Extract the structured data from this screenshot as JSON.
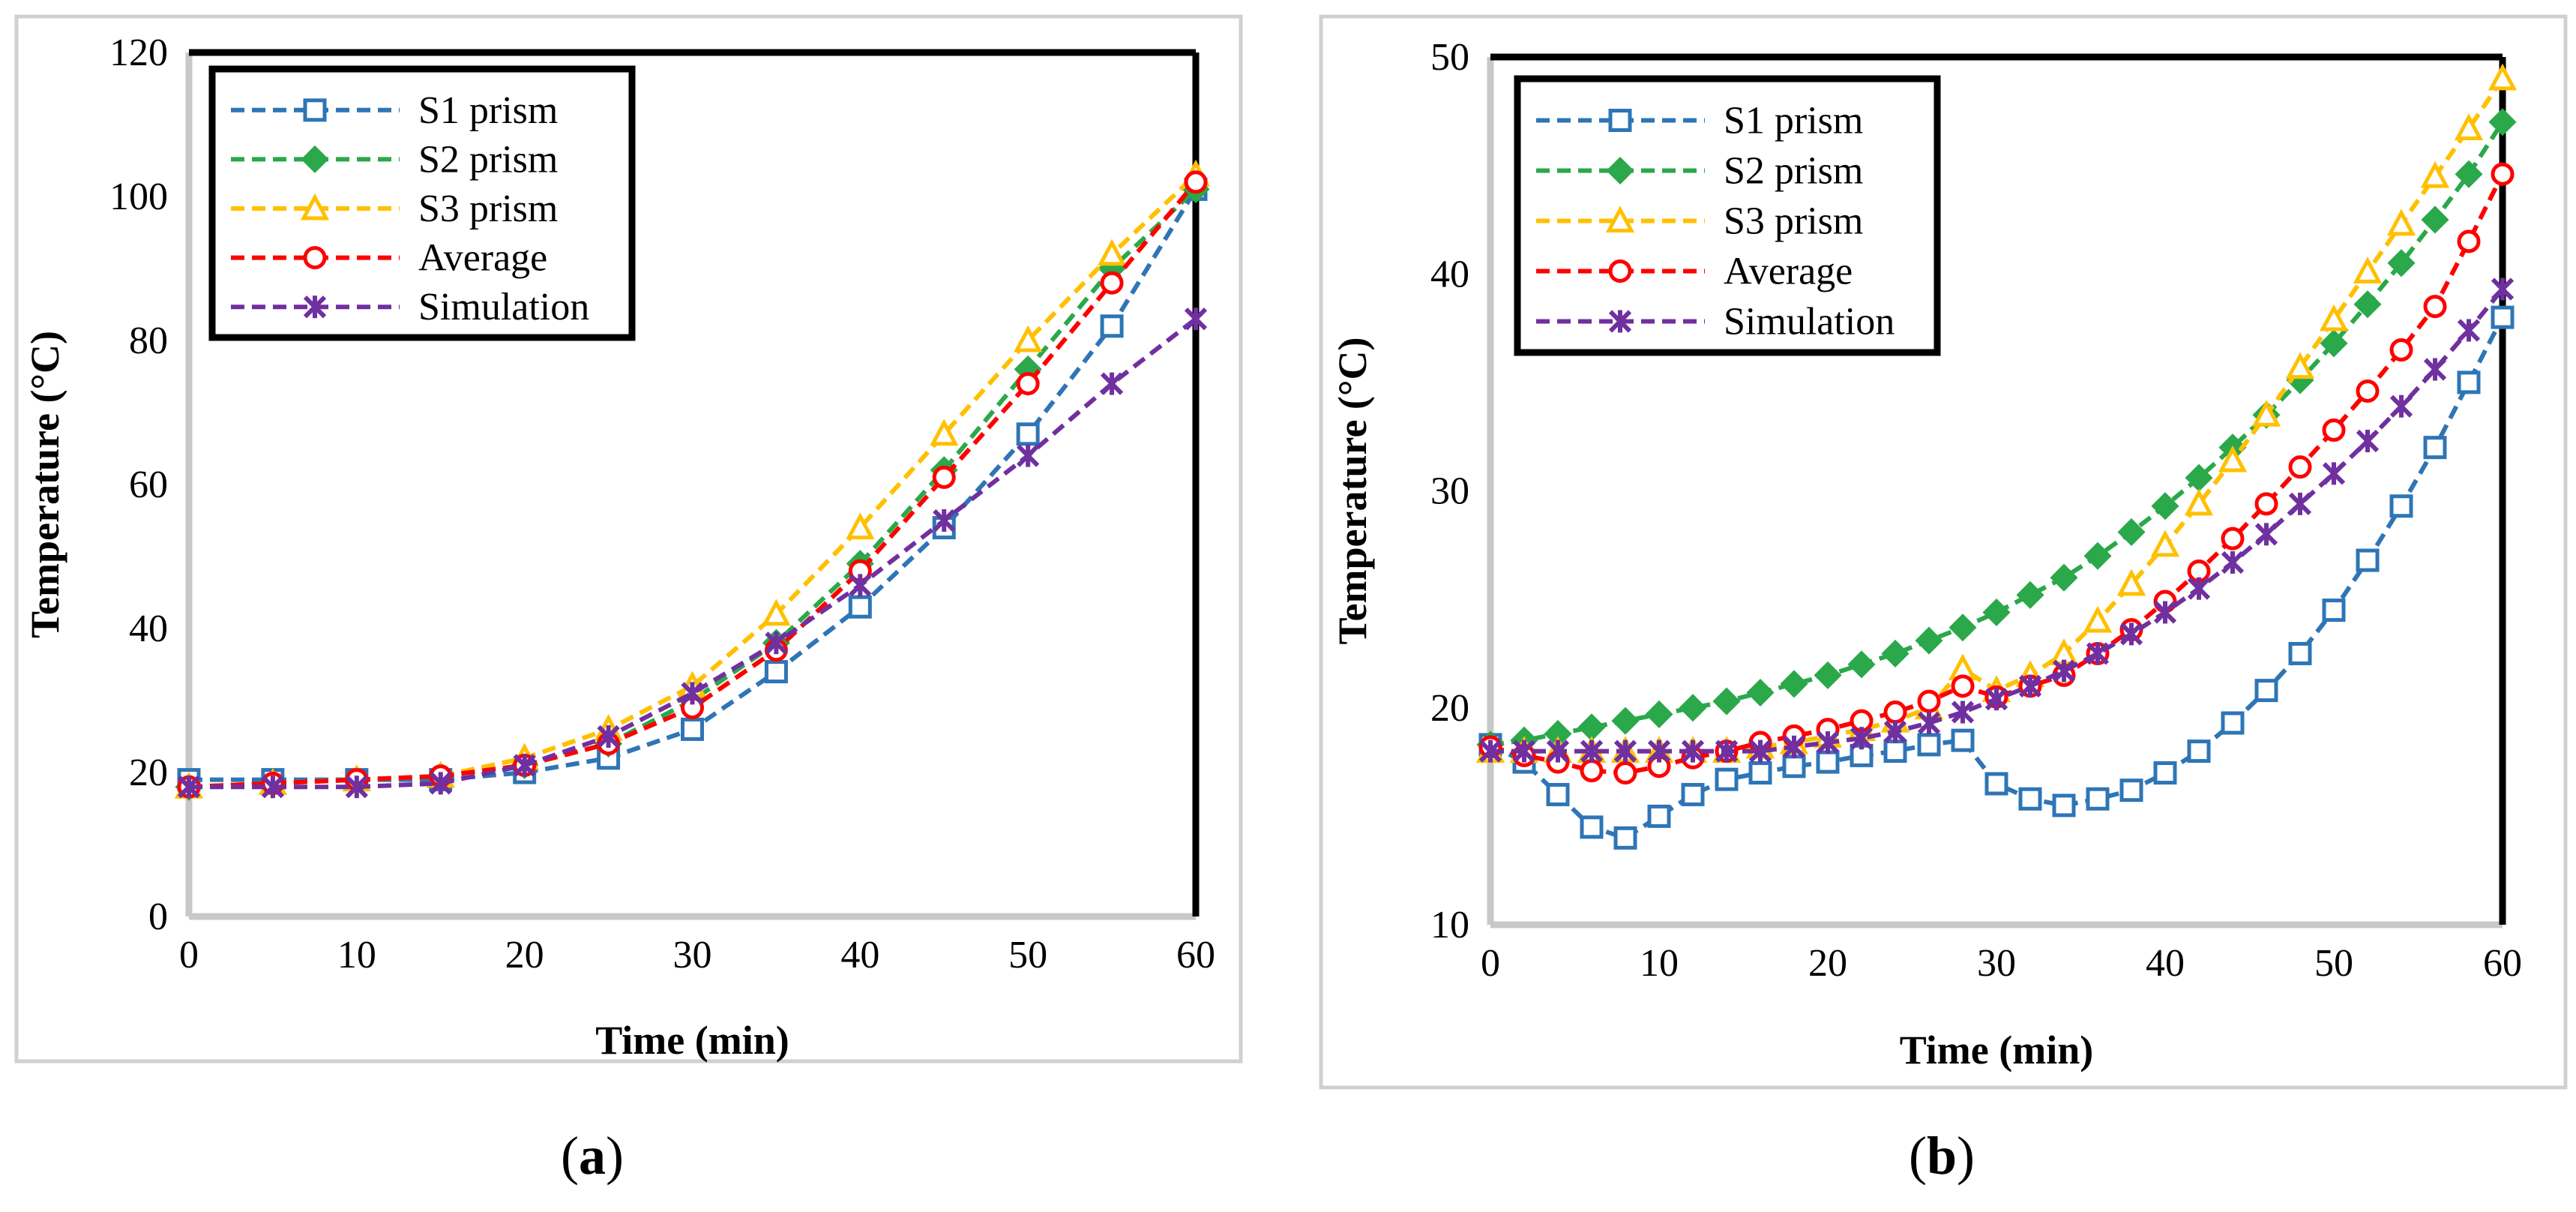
{
  "chart_data": [
    {
      "type": "line",
      "panel_label": "a",
      "xlabel": "Time (min)",
      "ylabel": "Temperature (°C)",
      "xlim": [
        0,
        60
      ],
      "ylim": [
        0,
        120
      ],
      "xticks": [
        0,
        10,
        20,
        30,
        40,
        50,
        60
      ],
      "yticks": [
        0,
        20,
        40,
        60,
        80,
        100,
        120
      ],
      "legend_position": "top-left",
      "grid": false,
      "x": [
        0,
        5,
        10,
        15,
        20,
        25,
        30,
        35,
        40,
        45,
        50,
        55,
        60
      ],
      "series": [
        {
          "name": "S1 prism",
          "color": "#2e75b6",
          "marker": "square",
          "values": [
            19,
            19,
            19,
            19,
            20,
            22,
            26,
            34,
            43,
            54,
            67,
            82,
            101
          ]
        },
        {
          "name": "S2 prism",
          "color": "#2aa84a",
          "marker": "diamond",
          "values": [
            18,
            18.5,
            19,
            19.5,
            21,
            24,
            30,
            38,
            49,
            62,
            76,
            90,
            101
          ]
        },
        {
          "name": "S3 prism",
          "color": "#ffc000",
          "marker": "triangle",
          "values": [
            18,
            18.5,
            19,
            19.5,
            22,
            26,
            32,
            42,
            54,
            67,
            80,
            92,
            103
          ]
        },
        {
          "name": "Average",
          "color": "#ff0000",
          "marker": "circle",
          "values": [
            18,
            18.5,
            19,
            19.5,
            21,
            24,
            29,
            37,
            48,
            61,
            74,
            88,
            102
          ]
        },
        {
          "name": "Simulation",
          "color": "#7030a0",
          "marker": "x",
          "values": [
            18,
            18,
            18,
            18.5,
            21,
            25,
            31,
            38,
            46,
            55,
            64,
            74,
            83
          ]
        }
      ]
    },
    {
      "type": "line",
      "panel_label": "b",
      "xlabel": "Time (min)",
      "ylabel": "Temperature (°C)",
      "xlim": [
        0,
        60
      ],
      "ylim": [
        10,
        50
      ],
      "xticks": [
        0,
        10,
        20,
        30,
        40,
        50,
        60
      ],
      "yticks": [
        10,
        20,
        30,
        40,
        50
      ],
      "legend_position": "top-left",
      "grid": false,
      "x": [
        0,
        2,
        4,
        6,
        8,
        10,
        12,
        14,
        16,
        18,
        20,
        22,
        24,
        26,
        28,
        30,
        32,
        34,
        36,
        38,
        40,
        42,
        44,
        46,
        48,
        50,
        52,
        54,
        56,
        58,
        60
      ],
      "series": [
        {
          "name": "S1 prism",
          "color": "#2e75b6",
          "marker": "square",
          "values": [
            18.3,
            17.5,
            16,
            14.5,
            14,
            15,
            16,
            16.7,
            17,
            17.3,
            17.5,
            17.8,
            18,
            18.3,
            18.5,
            16.5,
            15.8,
            15.5,
            15.8,
            16.2,
            17,
            18,
            19.3,
            20.8,
            22.5,
            24.5,
            26.8,
            29.3,
            32,
            35,
            38
          ]
        },
        {
          "name": "S2 prism",
          "color": "#2aa84a",
          "marker": "diamond",
          "values": [
            18.3,
            18.5,
            18.8,
            19.1,
            19.4,
            19.7,
            20,
            20.3,
            20.7,
            21.1,
            21.5,
            22,
            22.5,
            23.1,
            23.7,
            24.4,
            25.2,
            26,
            27,
            28.1,
            29.3,
            30.6,
            32,
            33.5,
            35.1,
            36.8,
            38.6,
            40.5,
            42.5,
            44.6,
            47
          ]
        },
        {
          "name": "S3 prism",
          "color": "#ffc000",
          "marker": "triangle",
          "values": [
            18,
            18,
            18,
            18,
            18,
            18,
            18,
            18,
            18.2,
            18.4,
            18.7,
            19,
            19.4,
            20,
            21.8,
            20.8,
            21.5,
            22.5,
            24,
            25.7,
            27.5,
            29.4,
            31.4,
            33.5,
            35.7,
            37.9,
            40.1,
            42.3,
            44.5,
            46.7,
            49
          ]
        },
        {
          "name": "Average",
          "color": "#ff0000",
          "marker": "circle",
          "values": [
            18.2,
            17.8,
            17.5,
            17.1,
            17,
            17.3,
            17.7,
            18,
            18.4,
            18.7,
            19,
            19.4,
            19.8,
            20.3,
            21,
            20.5,
            21,
            21.5,
            22.5,
            23.6,
            24.9,
            26.3,
            27.8,
            29.4,
            31.1,
            32.8,
            34.6,
            36.5,
            38.5,
            41.5,
            44.6
          ]
        },
        {
          "name": "Simulation",
          "color": "#7030a0",
          "marker": "x",
          "values": [
            18,
            18,
            18,
            18,
            18,
            18,
            18,
            18,
            18,
            18.2,
            18.4,
            18.6,
            18.9,
            19.3,
            19.8,
            20.4,
            21,
            21.7,
            22.5,
            23.4,
            24.4,
            25.5,
            26.7,
            28,
            29.4,
            30.8,
            32.3,
            33.9,
            35.6,
            37.4,
            39.3
          ]
        }
      ]
    }
  ]
}
